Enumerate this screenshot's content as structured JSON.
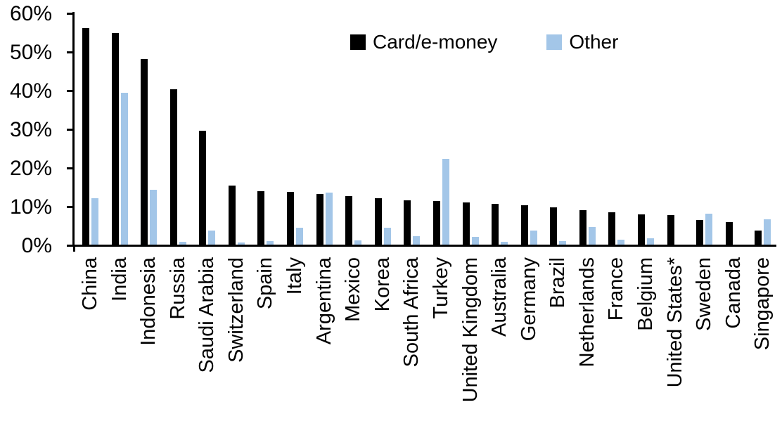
{
  "chart_data": {
    "type": "bar",
    "title": "",
    "xlabel": "",
    "ylabel": "",
    "ylim": [
      0,
      60
    ],
    "ytick_step": 10,
    "ytick_labels": [
      "0%",
      "10%",
      "20%",
      "30%",
      "40%",
      "50%",
      "60%"
    ],
    "grid": false,
    "legend_position": "top-center",
    "categories": [
      "China",
      "India",
      "Indonesia",
      "Russia",
      "Saudi Arabia",
      "Switzerland",
      "Spain",
      "Italy",
      "Argentina",
      "Mexico",
      "Korea",
      "South Africa",
      "Turkey",
      "United Kingdom",
      "Australia",
      "Germany",
      "Brazil",
      "Netherlands",
      "France",
      "Belgium",
      "United States*",
      "Sweden",
      "Canada",
      "Singapore"
    ],
    "series": [
      {
        "name": "Card/e-money",
        "color": "#000000",
        "values": [
          56.2,
          55.0,
          48.2,
          40.5,
          29.8,
          15.5,
          14.1,
          14.0,
          13.3,
          12.9,
          12.2,
          11.8,
          11.6,
          11.1,
          10.8,
          10.5,
          10.0,
          9.2,
          8.7,
          8.1,
          8.0,
          6.7,
          6.1,
          3.9
        ]
      },
      {
        "name": "Other",
        "color": "#A3C6E8",
        "values": [
          12.3,
          39.6,
          14.4,
          1.0,
          3.9,
          0.9,
          1.2,
          4.6,
          13.8,
          1.4,
          4.6,
          2.4,
          22.5,
          2.3,
          1.0,
          3.9,
          1.2,
          4.8,
          1.5,
          2.0,
          0.3,
          8.2,
          0.0,
          6.8
        ]
      }
    ]
  },
  "legend": {
    "card_label": "Card/e-money",
    "other_label": "Other"
  },
  "colors": {
    "card": "#000000",
    "other": "#A3C6E8",
    "axis": "#000000",
    "background": "#FFFFFF"
  }
}
